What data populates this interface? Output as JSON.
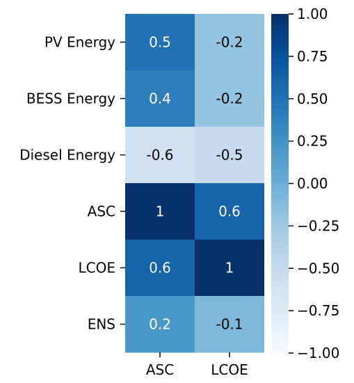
{
  "chart_data": {
    "type": "heatmap",
    "title": "",
    "xlabel": "",
    "ylabel": "",
    "x_categories": [
      "ASC",
      "LCOE"
    ],
    "y_categories": [
      "PV Energy",
      "BESS Energy",
      "Diesel Energy",
      "ASC",
      "LCOE",
      "ENS"
    ],
    "values": [
      [
        0.5,
        -0.2
      ],
      [
        0.4,
        -0.2
      ],
      [
        -0.6,
        -0.5
      ],
      [
        1,
        0.6
      ],
      [
        0.6,
        1
      ],
      [
        0.2,
        -0.1
      ]
    ],
    "cell_labels": [
      [
        "0.5",
        "-0.2"
      ],
      [
        "0.4",
        "-0.2"
      ],
      [
        "-0.6",
        "-0.5"
      ],
      [
        "1",
        "0.6"
      ],
      [
        "0.6",
        "1"
      ],
      [
        "0.2",
        "-0.1"
      ]
    ],
    "colorbar": {
      "vmin": -1,
      "vmax": 1,
      "ticks": [
        1.0,
        0.75,
        0.5,
        0.25,
        0.0,
        -0.25,
        -0.5,
        -0.75,
        -1.0
      ],
      "tick_labels": [
        "1.00",
        "0.75",
        "0.50",
        "0.25",
        "0.00",
        "−0.25",
        "−0.50",
        "−0.75",
        "−1.00"
      ],
      "colormap": "Blues"
    },
    "colors": {
      "colormap_stops": [
        "#f7fbff",
        "#deebf7",
        "#c6dbef",
        "#9ecae1",
        "#6baed6",
        "#4292c6",
        "#2171b5",
        "#08519c",
        "#08306b"
      ],
      "light_text": "#ffffff",
      "dark_text": "#000000"
    }
  }
}
